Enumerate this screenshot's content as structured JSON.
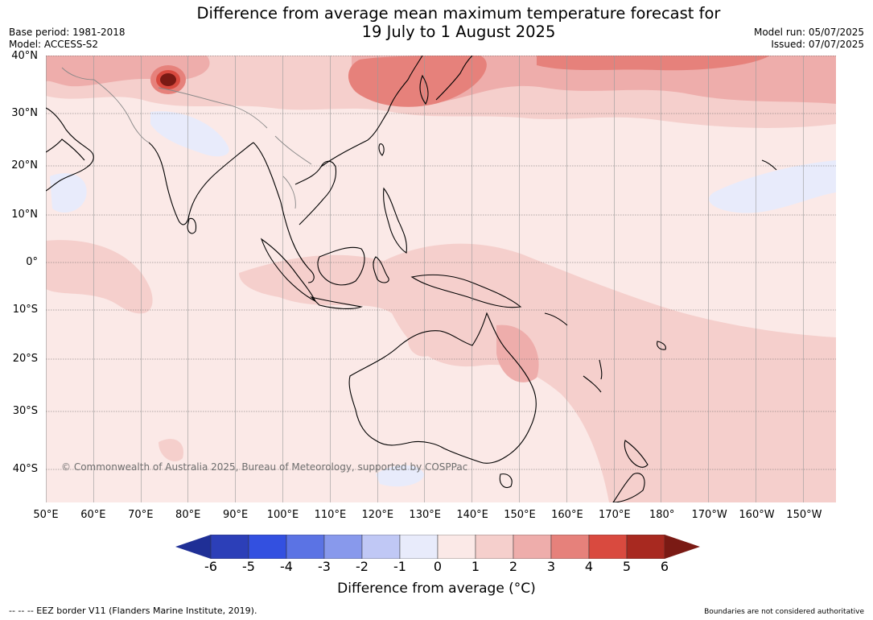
{
  "title_line1": "Difference from average mean maximum temperature forecast for",
  "title_line2": "19 July to 1 August 2025",
  "base_period": "Base period: 1981-2018",
  "model": "Model: ACCESS-S2",
  "model_run": "Model run: 05/07/2025",
  "issued": "Issued: 07/07/2025",
  "watermark": "© Commonwealth of Australia 2025, Bureau of Meteorology, supported by COSPPac",
  "lat_labels": [
    "40°N",
    "30°N",
    "20°N",
    "10°N",
    "0°",
    "10°S",
    "20°S",
    "30°S",
    "40°S"
  ],
  "lon_labels": [
    "50°E",
    "60°E",
    "70°E",
    "80°E",
    "90°E",
    "100°E",
    "110°E",
    "120°E",
    "130°E",
    "140°E",
    "150°E",
    "160°E",
    "170°E",
    "180°",
    "170°W",
    "160°W",
    "150°W"
  ],
  "legend": {
    "ticks": [
      "-6",
      "-5",
      "-4",
      "-3",
      "-2",
      "-1",
      "0",
      "1",
      "2",
      "3",
      "4",
      "5",
      "6"
    ],
    "colors": [
      "#1f2f96",
      "#2c3fb8",
      "#3350e0",
      "#5b73e4",
      "#8899ec",
      "#c0c8f5",
      "#e8ebfb",
      "#fbe9e7",
      "#f5cfcc",
      "#eeadab",
      "#e6817b",
      "#d94a3f",
      "#a82920",
      "#7a1a14"
    ],
    "title": "Difference from average (°C)"
  },
  "footer_left": "--  --  -- EEZ border V11 (Flanders Marine Institute, 2019).",
  "footer_right": "Boundaries are not considered authoritative"
}
